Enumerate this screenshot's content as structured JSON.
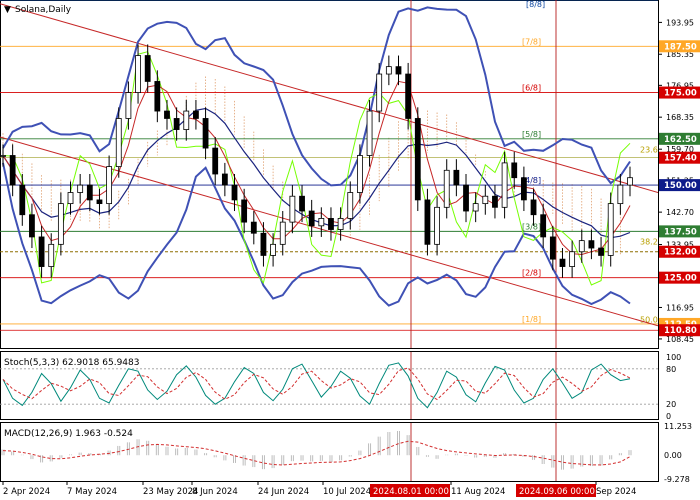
{
  "chart_data": [
    {
      "type": "line",
      "title": "Solana,Daily",
      "y_axis": {
        "range": [
          106,
          200
        ],
        "tick_labels": [
          "193.95",
          "185.35",
          "176.95",
          "168.35",
          "159.70",
          "151.25",
          "142.70",
          "133.95",
          "125.50",
          "116.95",
          "108.45"
        ]
      },
      "x_axis": {
        "tick_labels": [
          "2 Apr 2024",
          "7 May 2024",
          "23 May 2024",
          "8 Jun 2024",
          "24 Jun 2024",
          "10 Jul 2024",
          "11 Aug 2024",
          "Sep 2024"
        ],
        "highlighted_labels": [
          "2024.08.01 00:00",
          "2024.09.06 00:00"
        ]
      },
      "murrey_levels": [
        {
          "label": "[8/8]",
          "value": 200.0
        },
        {
          "label": "[7/8]",
          "value": 187.5
        },
        {
          "label": "[6/8]",
          "value": 175.0
        },
        {
          "label": "[5/8]",
          "value": 162.5
        },
        {
          "label": "[4/8]",
          "value": 150.0
        },
        {
          "label": "[3/8]",
          "value": 137.5
        },
        {
          "label": "[2/8]",
          "value": 125.0
        },
        {
          "label": "[1/8]",
          "value": 112.5
        }
      ],
      "fibonacci_labels": [
        {
          "label": "23.6",
          "value": 158.3
        },
        {
          "label": "38.2",
          "value": 133.4
        },
        {
          "label": "50.0",
          "value": 112.3
        }
      ],
      "price_labels": [
        {
          "label": "187.50",
          "value": 187.5,
          "color": "#ffa726"
        },
        {
          "label": "175.00",
          "value": 175.0,
          "color": "#d50000"
        },
        {
          "label": "162.50",
          "value": 162.5,
          "color": "#2e7d32"
        },
        {
          "label": "157.40",
          "value": 157.4,
          "color": "#d50000"
        },
        {
          "label": "150.00",
          "value": 150.0,
          "color": "#0d1b8a"
        },
        {
          "label": "137.50",
          "value": 137.5,
          "color": "#2e7d32"
        },
        {
          "label": "132.00",
          "value": 132.0,
          "color": "#d50000"
        },
        {
          "label": "125.00",
          "value": 125.0,
          "color": "#d50000"
        },
        {
          "label": "112.50",
          "value": 112.5,
          "color": "#ffa726"
        },
        {
          "label": "110.80",
          "value": 110.8,
          "color": "#d50000"
        }
      ],
      "price_series": [
        {
          "x": 0,
          "y": 158
        },
        {
          "x": 1,
          "y": 150
        },
        {
          "x": 2,
          "y": 142
        },
        {
          "x": 3,
          "y": 136
        },
        {
          "x": 4,
          "y": 128
        },
        {
          "x": 5,
          "y": 134
        },
        {
          "x": 6,
          "y": 145
        },
        {
          "x": 7,
          "y": 148
        },
        {
          "x": 8,
          "y": 150
        },
        {
          "x": 9,
          "y": 146
        },
        {
          "x": 10,
          "y": 145
        },
        {
          "x": 11,
          "y": 155
        },
        {
          "x": 12,
          "y": 168
        },
        {
          "x": 13,
          "y": 175
        },
        {
          "x": 14,
          "y": 185
        },
        {
          "x": 15,
          "y": 178
        },
        {
          "x": 16,
          "y": 170
        },
        {
          "x": 17,
          "y": 168
        },
        {
          "x": 18,
          "y": 165
        },
        {
          "x": 19,
          "y": 170
        },
        {
          "x": 20,
          "y": 168
        },
        {
          "x": 21,
          "y": 160
        },
        {
          "x": 22,
          "y": 153
        },
        {
          "x": 23,
          "y": 150
        },
        {
          "x": 24,
          "y": 146
        },
        {
          "x": 25,
          "y": 140
        },
        {
          "x": 26,
          "y": 137
        },
        {
          "x": 27,
          "y": 131
        },
        {
          "x": 28,
          "y": 134
        },
        {
          "x": 29,
          "y": 140
        },
        {
          "x": 30,
          "y": 147
        },
        {
          "x": 31,
          "y": 143
        },
        {
          "x": 32,
          "y": 139
        },
        {
          "x": 33,
          "y": 141
        },
        {
          "x": 34,
          "y": 138
        },
        {
          "x": 35,
          "y": 141
        },
        {
          "x": 36,
          "y": 148
        },
        {
          "x": 37,
          "y": 158
        },
        {
          "x": 38,
          "y": 170
        },
        {
          "x": 39,
          "y": 180
        },
        {
          "x": 40,
          "y": 182
        },
        {
          "x": 41,
          "y": 180
        },
        {
          "x": 42,
          "y": 168
        },
        {
          "x": 43,
          "y": 146
        },
        {
          "x": 44,
          "y": 134
        },
        {
          "x": 45,
          "y": 144
        },
        {
          "x": 46,
          "y": 154
        },
        {
          "x": 47,
          "y": 150
        },
        {
          "x": 48,
          "y": 143
        },
        {
          "x": 49,
          "y": 145
        },
        {
          "x": 50,
          "y": 147
        },
        {
          "x": 51,
          "y": 144
        },
        {
          "x": 52,
          "y": 156
        },
        {
          "x": 53,
          "y": 152
        },
        {
          "x": 54,
          "y": 146
        },
        {
          "x": 55,
          "y": 142
        },
        {
          "x": 56,
          "y": 136
        },
        {
          "x": 57,
          "y": 130
        },
        {
          "x": 58,
          "y": 128
        },
        {
          "x": 59,
          "y": 132
        },
        {
          "x": 60,
          "y": 135
        },
        {
          "x": 61,
          "y": 133
        },
        {
          "x": 62,
          "y": 131
        },
        {
          "x": 63,
          "y": 145
        },
        {
          "x": 64,
          "y": 150
        },
        {
          "x": 65,
          "y": 152
        }
      ]
    },
    {
      "type": "line",
      "title": "Stoch(5,3,3) 62.9018 65.9483",
      "y_axis": {
        "range": [
          0,
          100
        ],
        "tick_labels": [
          "100",
          "80",
          "20",
          "0"
        ]
      },
      "k_values": [
        62,
        30,
        18,
        40,
        72,
        55,
        25,
        48,
        78,
        62,
        30,
        22,
        52,
        80,
        76,
        44,
        28,
        42,
        70,
        85,
        66,
        35,
        20,
        30,
        58,
        82,
        72,
        40,
        26,
        45,
        80,
        88,
        60,
        32,
        50,
        76,
        64,
        34,
        20,
        55,
        86,
        90,
        68,
        30,
        14,
        40,
        76,
        66,
        36,
        24,
        56,
        84,
        78,
        44,
        22,
        30,
        62,
        80,
        56,
        30,
        40,
        78,
        88,
        70,
        60,
        63
      ]
    },
    {
      "type": "bar",
      "title": "MACD(12,26,9) 1.963 -0.524",
      "y_axis": {
        "range": [
          -10,
          12.5
        ],
        "tick_labels": [
          "11.253",
          "0.00",
          "-9.278"
        ]
      },
      "histogram": [
        2.2,
        1.4,
        0.2,
        -1.5,
        -2.8,
        -2.4,
        -1.0,
        0.3,
        1.0,
        0.8,
        0.5,
        1.8,
        3.6,
        5.0,
        6.2,
        5.6,
        4.2,
        3.3,
        2.6,
        2.8,
        2.2,
        0.8,
        -0.8,
        -2.0,
        -3.0,
        -4.0,
        -4.6,
        -5.4,
        -5.0,
        -3.8,
        -2.3,
        -2.1,
        -2.4,
        -2.2,
        -2.6,
        -2.0,
        -0.5,
        1.8,
        4.6,
        7.2,
        9.0,
        9.4,
        7.8,
        3.2,
        -0.6,
        -1.4,
        0.2,
        0.6,
        -0.2,
        -0.9,
        -0.6,
        -1.0,
        0.8,
        0.5,
        -0.6,
        -1.8,
        -3.4,
        -4.8,
        -5.6,
        -5.2,
        -4.4,
        -4.2,
        -4.0,
        -1.6,
        0.8,
        1.96
      ],
      "signal": [
        1.8,
        1.6,
        1.1,
        0.4,
        -0.6,
        -1.3,
        -1.4,
        -1.0,
        -0.4,
        0.1,
        0.4,
        0.7,
        1.4,
        2.3,
        3.3,
        4.0,
        4.2,
        4.0,
        3.6,
        3.3,
        3.0,
        2.5,
        1.7,
        0.8,
        -0.2,
        -1.2,
        -2.1,
        -3.0,
        -3.6,
        -3.8,
        -3.5,
        -3.2,
        -3.0,
        -2.8,
        -2.7,
        -2.6,
        -2.1,
        -1.3,
        -0.1,
        1.4,
        3.0,
        4.5,
        5.4,
        5.1,
        3.8,
        2.6,
        1.8,
        1.3,
        0.9,
        0.5,
        0.2,
        -0.1,
        0.0,
        0.1,
        -0.1,
        -0.5,
        -1.1,
        -1.9,
        -2.7,
        -3.2,
        -3.5,
        -3.7,
        -3.8,
        -3.4,
        -2.6,
        -0.52
      ]
    }
  ]
}
